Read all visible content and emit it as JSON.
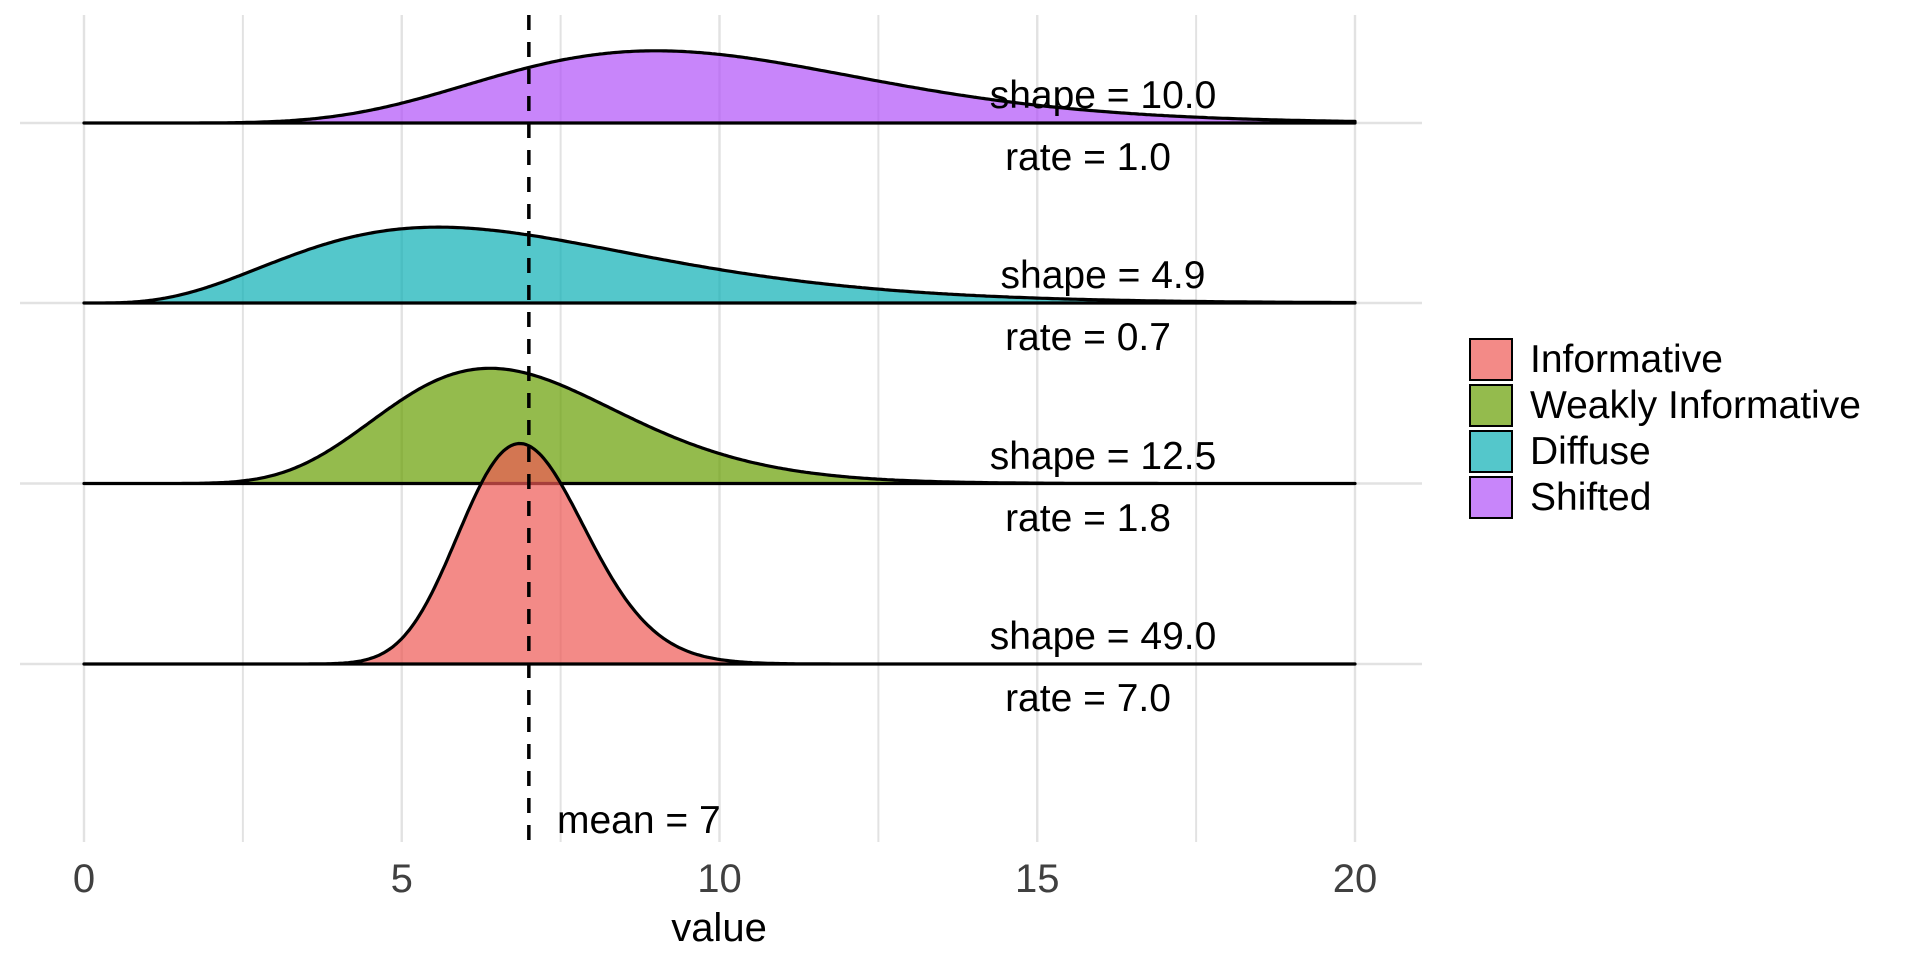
{
  "chart_data": {
    "type": "area",
    "subtype": "ridgeline_density",
    "title": "",
    "xlabel": "value",
    "ylabel": "",
    "xlim": [
      0,
      20
    ],
    "x_major_ticks": [
      0,
      5,
      10,
      15,
      20
    ],
    "x_tick_labels": [
      "0",
      "5",
      "10",
      "15",
      "20"
    ],
    "x_minor_ticks": [
      2.5,
      7.5,
      12.5,
      17.5
    ],
    "grid": true,
    "gridline_color": "#E2E2E2",
    "axis_text_color": "#404040",
    "outline_color": "#000000",
    "fill_alpha": 0.7,
    "legend_position": "right",
    "mean_line": {
      "x": 7,
      "label": "mean = 7",
      "style": "dashed",
      "color": "#000000"
    },
    "series": [
      {
        "name": "Shifted",
        "distribution": "gamma",
        "shape": 10.0,
        "rate": 1.0,
        "peak_density": 0.132,
        "label_shape": "shape = 10.0",
        "label_rate": "rate = 1.0",
        "fill_base_rgb": [
          176,
          81,
          248
        ],
        "fill_on_white": "#C885FA"
      },
      {
        "name": "Diffuse",
        "distribution": "gamma",
        "shape": 4.9,
        "rate": 0.7,
        "peak_density": 0.138,
        "label_shape": "shape = 4.9",
        "label_rate": "rate = 0.7",
        "fill_base_rgb": [
          11,
          175,
          181
        ],
        "fill_on_white": "#54C7CB"
      },
      {
        "name": "Weakly Informative",
        "distribution": "gamma",
        "shape": 12.5,
        "rate": 1.8,
        "peak_density": 0.203,
        "label_shape": "shape = 12.5",
        "label_rate": "rate = 1.8",
        "fill_base_rgb": [
          102,
          158,
          2
        ],
        "fill_on_white": "#94BB4E"
      },
      {
        "name": "Informative",
        "distribution": "gamma",
        "shape": 49.0,
        "rate": 7.0,
        "peak_density": 0.399,
        "label_shape": "shape = 49.0",
        "label_rate": "rate = 7.0",
        "fill_base_rgb": [
          238,
          89,
          84
        ],
        "fill_on_white": "#F38B87"
      }
    ],
    "legend_entries": [
      {
        "label": "Informative",
        "series": "Informative"
      },
      {
        "label": "Weakly Informative",
        "series": "Weakly Informative"
      },
      {
        "label": "Diffuse",
        "series": "Diffuse"
      },
      {
        "label": "Shifted",
        "series": "Shifted"
      }
    ]
  }
}
